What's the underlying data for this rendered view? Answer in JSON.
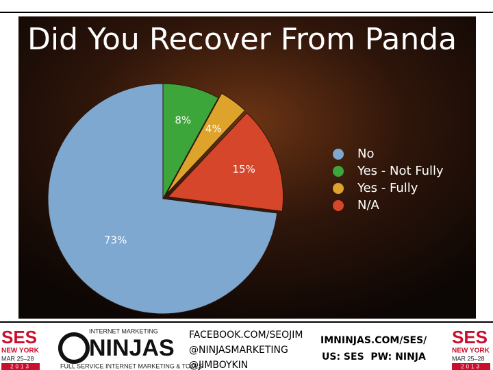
{
  "chart_data": {
    "type": "pie",
    "title": "Did You Recover From Panda",
    "categories": [
      "No",
      "Yes - Not Fully",
      "Yes - Fully",
      "N/A"
    ],
    "values": [
      73,
      8,
      4,
      15
    ],
    "value_labels": [
      "73%",
      "8%",
      "4%",
      "15%"
    ],
    "colors": [
      "#7ea8cf",
      "#3da63a",
      "#dea32b",
      "#d6462a"
    ],
    "legend": "right"
  },
  "footer": {
    "ses_logo": {
      "name": "SES",
      "city": "NEW YORK",
      "dates": "MAR 25–28",
      "year": "2013"
    },
    "ninjas_logo": {
      "top": "INTERNET MARKETING",
      "name": "NINJAS",
      "tagline": "FULL SERVICE INTERNET MARKETING & TOOLS"
    },
    "social": [
      "FACEBOOK.COM/SEOJIM",
      "@NINJASMARKETING",
      "@JIMBOYKIN"
    ],
    "site": "IMNINJAS.COM/SES/",
    "password": "US: SES  PW: NINJA"
  }
}
